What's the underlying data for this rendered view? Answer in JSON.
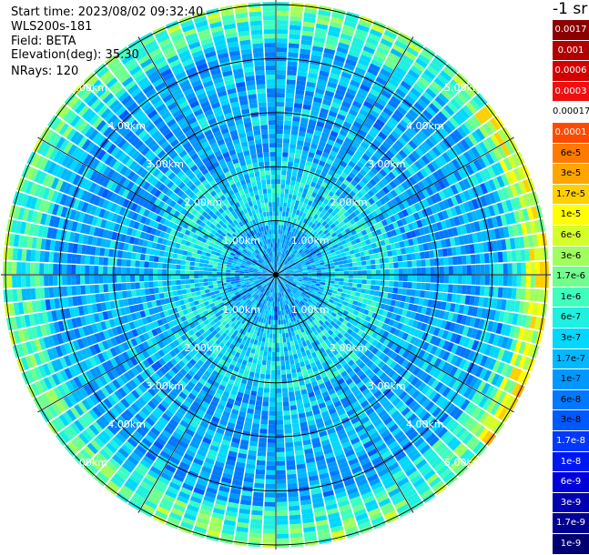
{
  "header": {
    "start_time": "Start time: 2023/08/02 09:32:40",
    "instrument": "WLS200s-181",
    "field": "Field: BETA",
    "elevation": "Elevation(deg): 35.30",
    "nrays": "NRays: 120"
  },
  "chart_data": {
    "type": "heatmap",
    "projection": "polar PPI",
    "range_rings_km": [
      1,
      2,
      3,
      4,
      5
    ],
    "ring_labels": [
      "1.00km",
      "2.00km",
      "3.00km",
      "4.00km",
      "5.00km"
    ],
    "azimuth_spokes_deg": [
      0,
      30,
      60,
      90,
      120,
      150,
      180,
      210,
      240,
      270,
      300,
      330
    ],
    "n_rays": 120,
    "max_range_km": 5.05
  },
  "colorbar": {
    "title": "-1 sr",
    "levels": [
      {
        "label": "0.0017",
        "color": "#8b0000",
        "text": "#ffffff"
      },
      {
        "label": "0.001",
        "color": "#b00000",
        "text": "#ffffff"
      },
      {
        "label": "0.0006",
        "color": "#d40000",
        "text": "#ffffff"
      },
      {
        "label": "0.0003",
        "color": "#ee1010",
        "text": "#ffffff"
      },
      {
        "label": "0.00017",
        "color": "#ffffff",
        "text": "#000000"
      },
      {
        "label": "0.0001",
        "color": "#ff4a00",
        "text": "#ffffff"
      },
      {
        "label": "6e-5",
        "color": "#ff7a00",
        "text": "#000000"
      },
      {
        "label": "3e-5",
        "color": "#ffa500",
        "text": "#000000"
      },
      {
        "label": "1.7e-5",
        "color": "#ffd000",
        "text": "#000000"
      },
      {
        "label": "1e-5",
        "color": "#ffff00",
        "text": "#000000"
      },
      {
        "label": "6e-6",
        "color": "#d4ff2a",
        "text": "#000000"
      },
      {
        "label": "3e-6",
        "color": "#a0ff5e",
        "text": "#000000"
      },
      {
        "label": "1.7e-6",
        "color": "#70ff8e",
        "text": "#000000"
      },
      {
        "label": "1e-6",
        "color": "#40ffbe",
        "text": "#000000"
      },
      {
        "label": "6e-7",
        "color": "#20f0e0",
        "text": "#000000"
      },
      {
        "label": "3e-7",
        "color": "#00d8ff",
        "text": "#000000"
      },
      {
        "label": "1.7e-7",
        "color": "#00b8ff",
        "text": "#000000"
      },
      {
        "label": "1e-7",
        "color": "#0098ff",
        "text": "#000000"
      },
      {
        "label": "6e-8",
        "color": "#0078ff",
        "text": "#000000"
      },
      {
        "label": "3e-8",
        "color": "#0058ff",
        "text": "#000000"
      },
      {
        "label": "1.7e-8",
        "color": "#0038ff",
        "text": "#ffffff"
      },
      {
        "label": "1e-8",
        "color": "#0018f0",
        "text": "#ffffff"
      },
      {
        "label": "6e-9",
        "color": "#0000d8",
        "text": "#ffffff"
      },
      {
        "label": "3e-9",
        "color": "#0000b0",
        "text": "#ffffff"
      },
      {
        "label": "1.7e-9",
        "color": "#000090",
        "text": "#ffffff"
      },
      {
        "label": "1e-9",
        "color": "#000070",
        "text": "#ffffff"
      }
    ]
  }
}
